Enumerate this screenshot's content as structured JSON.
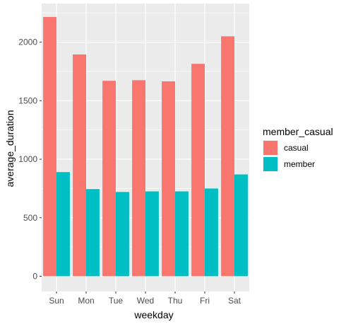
{
  "chart_data": {
    "type": "bar",
    "xlabel": "weekday",
    "ylabel": "average_duration",
    "categories": [
      "Sun",
      "Mon",
      "Tue",
      "Wed",
      "Thu",
      "Fri",
      "Sat"
    ],
    "series": [
      {
        "name": "casual",
        "color": "#F8766D",
        "values": [
          2215,
          1895,
          1670,
          1675,
          1665,
          1815,
          2050
        ]
      },
      {
        "name": "member",
        "color": "#00BFC4",
        "values": [
          890,
          745,
          720,
          725,
          725,
          750,
          870
        ]
      }
    ],
    "ylim": [
      -130,
      2330
    ],
    "yticks": [
      0,
      500,
      1000,
      1500,
      2000
    ],
    "grid": true,
    "panel_background": "#EBEBEB",
    "legend": {
      "title": "member_casual",
      "placement": "right"
    }
  }
}
